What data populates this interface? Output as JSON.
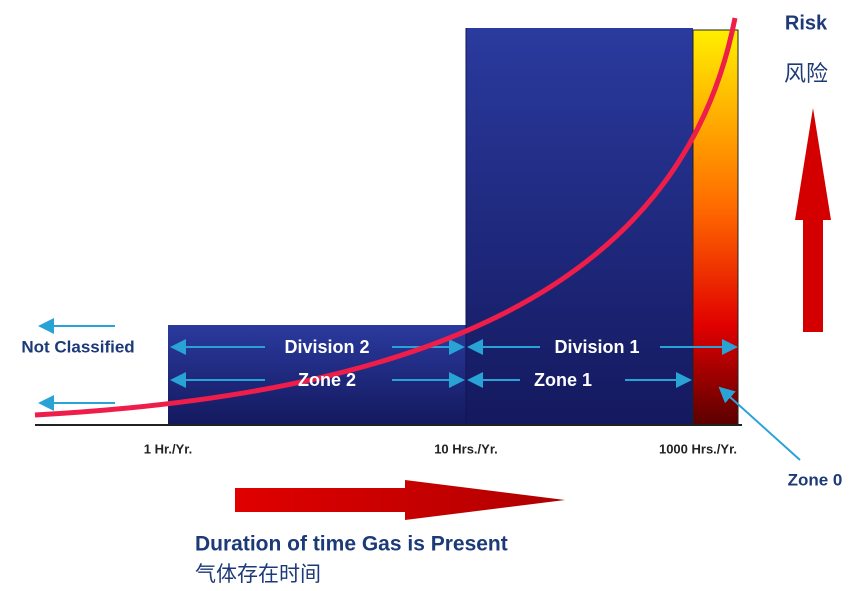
{
  "risk": {
    "label": "Risk",
    "label_cn": "风险"
  },
  "left": {
    "label": "Not Classified"
  },
  "regions": [
    {
      "division": "Division 2",
      "zone": "Zone 2"
    },
    {
      "division": "Division 1",
      "zone": "Zone 1"
    },
    {
      "zone": "Zone 0"
    }
  ],
  "axis": {
    "ticks": [
      "1 Hr./Yr.",
      "10 Hrs./Yr.",
      "1000 Hrs./Yr."
    ],
    "title": "Duration of time Gas is Present",
    "title_cn": "气体存在时间"
  }
}
